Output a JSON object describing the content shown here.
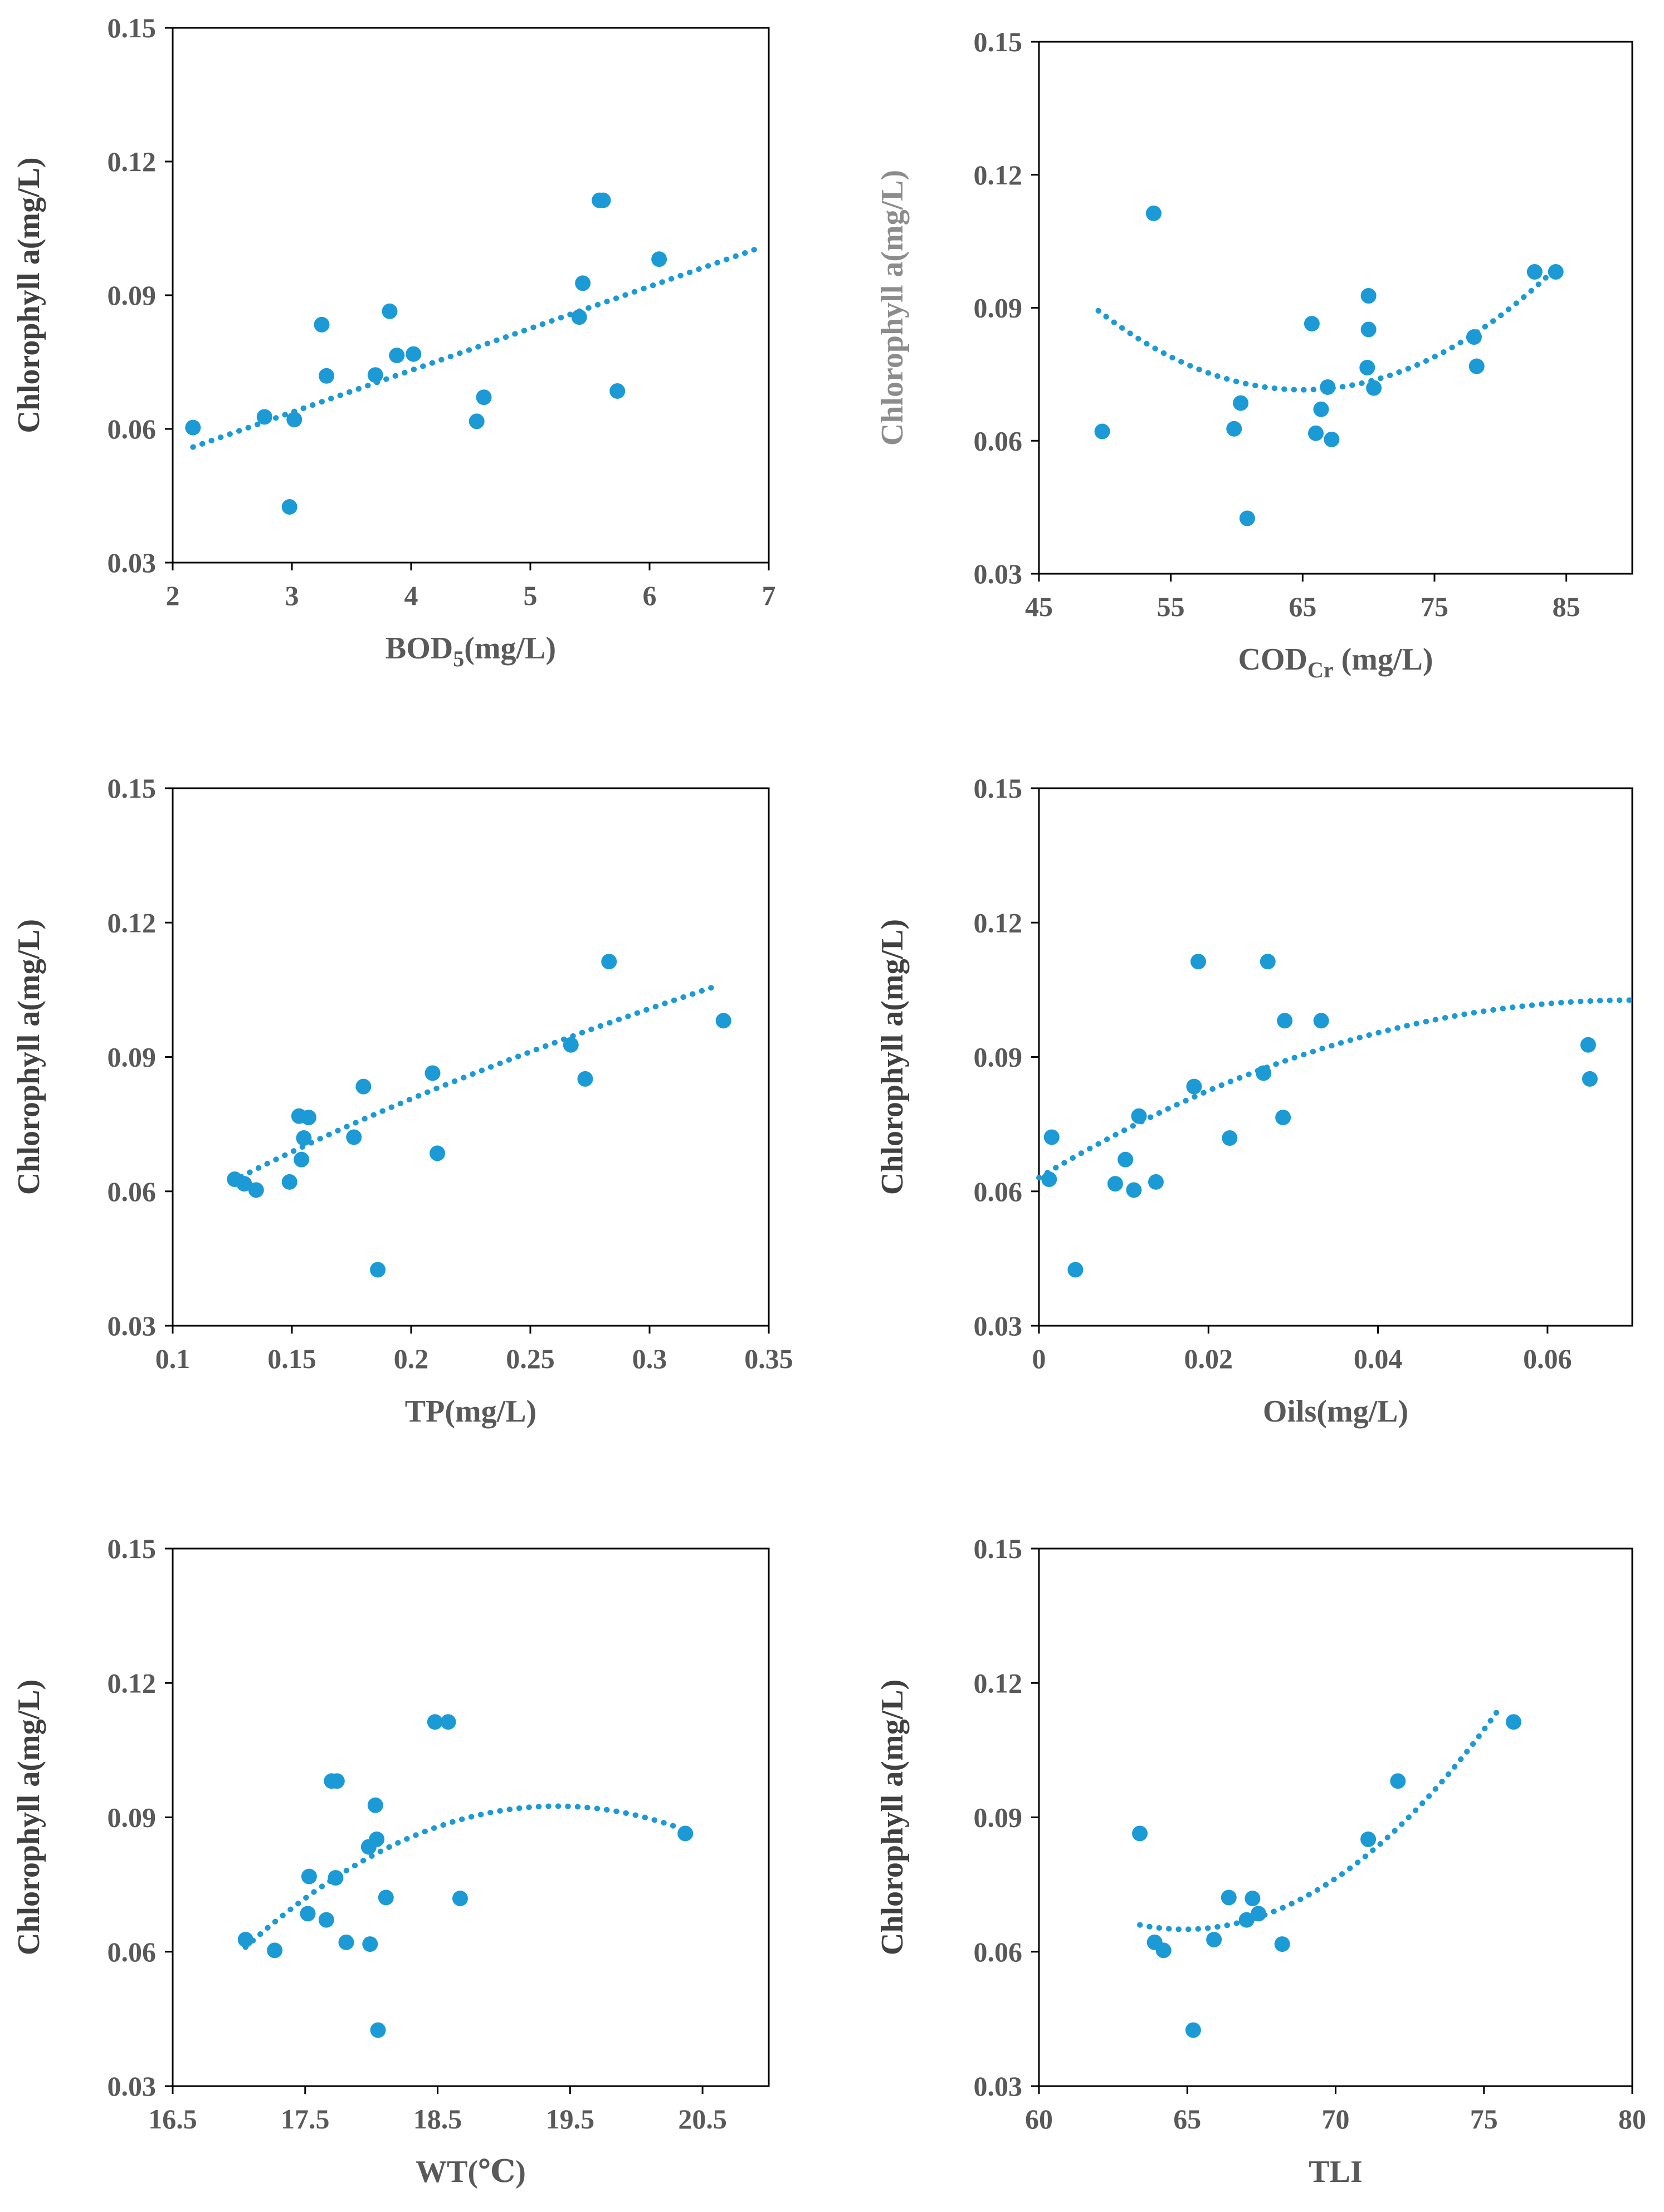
{
  "colors": {
    "marker": "#1b9ad6",
    "axis": "#000000",
    "text": "#595959"
  },
  "chart_data": [
    {
      "id": "bod5",
      "type": "scatter",
      "title": "",
      "xlabel": "BOD",
      "xlabel_sub": "5",
      "xlabel_tail": "(mg/L)",
      "ylabel": "Chlorophyll a(mg/L)",
      "xlim": [
        2,
        7
      ],
      "ylim": [
        0.03,
        0.15
      ],
      "xticks": [
        2,
        3,
        4,
        5,
        6,
        7
      ],
      "xtick_labels": [
        "2",
        "3",
        "4",
        "5",
        "6",
        "7"
      ],
      "yticks": [
        0.03,
        0.06,
        0.09,
        0.12,
        0.15
      ],
      "ytick_labels": [
        "0.03",
        "0.06",
        "0.09",
        "0.12",
        "0.15"
      ],
      "points": [
        [
          2.17,
          0.0603
        ],
        [
          2.77,
          0.0627
        ],
        [
          3.02,
          0.0621
        ],
        [
          2.98,
          0.0425
        ],
        [
          3.25,
          0.0834
        ],
        [
          3.29,
          0.0719
        ],
        [
          3.7,
          0.0721
        ],
        [
          3.82,
          0.0864
        ],
        [
          3.88,
          0.0765
        ],
        [
          4.02,
          0.0768
        ],
        [
          4.55,
          0.0617
        ],
        [
          4.61,
          0.0671
        ],
        [
          5.41,
          0.0851
        ],
        [
          5.44,
          0.0927
        ],
        [
          5.58,
          0.1113
        ],
        [
          5.61,
          0.1113
        ],
        [
          5.73,
          0.0685
        ],
        [
          6.08,
          0.0981
        ]
      ],
      "trend": {
        "kind": "linear",
        "x_range": [
          2.17,
          6.93
        ],
        "coef": [
          0.0355,
          0.00941
        ]
      }
    },
    {
      "id": "codcr",
      "type": "scatter",
      "title": "",
      "xlabel": "COD",
      "xlabel_sub": "Cr",
      "xlabel_tail": " (mg/L)",
      "ylabel": "Chlorophyll a(mg/L)",
      "xlim": [
        45,
        90
      ],
      "ylim": [
        0.03,
        0.15
      ],
      "xticks": [
        45,
        55,
        65,
        75,
        85
      ],
      "xtick_labels": [
        "45",
        "55",
        "65",
        "75",
        "85"
      ],
      "yticks": [
        0.03,
        0.06,
        0.09,
        0.12,
        0.15
      ],
      "ytick_labels": [
        "0.03",
        "0.06",
        "0.09",
        "0.12",
        "0.15"
      ],
      "points": [
        [
          49.8,
          0.0621
        ],
        [
          53.7,
          0.1113
        ],
        [
          59.8,
          0.0627
        ],
        [
          60.3,
          0.0685
        ],
        [
          60.8,
          0.0425
        ],
        [
          65.7,
          0.0864
        ],
        [
          66.0,
          0.0617
        ],
        [
          66.4,
          0.0671
        ],
        [
          66.9,
          0.0721
        ],
        [
          67.2,
          0.0603
        ],
        [
          69.9,
          0.0765
        ],
        [
          70.0,
          0.0927
        ],
        [
          70.0,
          0.0851
        ],
        [
          70.4,
          0.0719
        ],
        [
          78.0,
          0.0834
        ],
        [
          78.2,
          0.0768
        ],
        [
          82.6,
          0.0981
        ],
        [
          84.2,
          0.0981
        ]
      ],
      "trend": {
        "kind": "quadratic",
        "x_range": [
          49.5,
          84.5
        ],
        "vertex": [
          65.0,
          0.0715
        ],
        "a": 7.43e-05
      }
    },
    {
      "id": "tp",
      "type": "scatter",
      "title": "",
      "xlabel": "TP(mg/L)",
      "xlabel_sub": "",
      "xlabel_tail": "",
      "ylabel": "Chlorophyll a(mg/L)",
      "xlim": [
        0.1,
        0.35
      ],
      "ylim": [
        0.03,
        0.15
      ],
      "xticks": [
        0.1,
        0.15,
        0.2,
        0.25,
        0.3,
        0.35
      ],
      "xtick_labels": [
        "0.1",
        "0.15",
        "0.2",
        "0.25",
        "0.3",
        "0.35"
      ],
      "yticks": [
        0.03,
        0.06,
        0.09,
        0.12,
        0.15
      ],
      "ytick_labels": [
        "0.03",
        "0.06",
        "0.09",
        "0.12",
        "0.15"
      ],
      "points": [
        [
          0.126,
          0.0627
        ],
        [
          0.13,
          0.0617
        ],
        [
          0.135,
          0.0603
        ],
        [
          0.149,
          0.0621
        ],
        [
          0.153,
          0.0768
        ],
        [
          0.154,
          0.0671
        ],
        [
          0.155,
          0.0719
        ],
        [
          0.157,
          0.0765
        ],
        [
          0.176,
          0.0721
        ],
        [
          0.18,
          0.0834
        ],
        [
          0.186,
          0.0425
        ],
        [
          0.209,
          0.0864
        ],
        [
          0.211,
          0.0685
        ],
        [
          0.267,
          0.0927
        ],
        [
          0.273,
          0.0851
        ],
        [
          0.283,
          0.1113
        ],
        [
          0.331,
          0.0981
        ]
      ],
      "trend": {
        "kind": "power",
        "x_range": [
          0.125,
          0.327
        ],
        "a": 0.1954,
        "b": 0.55
      }
    },
    {
      "id": "oils",
      "type": "scatter",
      "title": "",
      "xlabel": "Oils(mg/L)",
      "xlabel_sub": "",
      "xlabel_tail": "",
      "ylabel": "Chlorophyll a(mg/L)",
      "xlim": [
        0,
        0.07
      ],
      "ylim": [
        0.03,
        0.15
      ],
      "xticks": [
        0,
        0.02,
        0.04,
        0.06
      ],
      "xtick_labels": [
        "0",
        "0.02",
        "0.04",
        "0.06"
      ],
      "yticks": [
        0.03,
        0.06,
        0.09,
        0.12,
        0.15
      ],
      "ytick_labels": [
        "0.03",
        "0.06",
        "0.09",
        "0.12",
        "0.15"
      ],
      "points": [
        [
          0.0012,
          0.0627
        ],
        [
          0.0015,
          0.0721
        ],
        [
          0.0043,
          0.0425
        ],
        [
          0.009,
          0.0617
        ],
        [
          0.0102,
          0.0671
        ],
        [
          0.0112,
          0.0603
        ],
        [
          0.0118,
          0.0768
        ],
        [
          0.0138,
          0.0621
        ],
        [
          0.0183,
          0.0834
        ],
        [
          0.0188,
          0.1113
        ],
        [
          0.0225,
          0.0719
        ],
        [
          0.0265,
          0.0864
        ],
        [
          0.027,
          0.1113
        ],
        [
          0.0288,
          0.0765
        ],
        [
          0.029,
          0.0981
        ],
        [
          0.0333,
          0.0981
        ],
        [
          0.0648,
          0.0927
        ],
        [
          0.065,
          0.0851
        ]
      ],
      "trend": {
        "kind": "quadratic",
        "x_range": [
          0.0,
          0.07
        ],
        "vertex": [
          0.07,
          0.1027
        ],
        "a": -8.09
      }
    },
    {
      "id": "wt",
      "type": "scatter",
      "title": "",
      "xlabel": "WT(℃)",
      "xlabel_sub": "",
      "xlabel_tail": "",
      "ylabel": "Chlorophyll a(mg/L)",
      "xlim": [
        16.5,
        21.0
      ],
      "ylim": [
        0.03,
        0.15
      ],
      "xticks": [
        16.5,
        17.5,
        18.5,
        19.5,
        20.5
      ],
      "xtick_labels": [
        "16.5",
        "17.5",
        "18.5",
        "19.5",
        "20.5"
      ],
      "yticks": [
        0.03,
        0.06,
        0.09,
        0.12,
        0.15
      ],
      "ytick_labels": [
        "0.03",
        "0.06",
        "0.09",
        "0.12",
        "0.15"
      ],
      "points": [
        [
          17.05,
          0.0627
        ],
        [
          17.27,
          0.0603
        ],
        [
          17.52,
          0.0685
        ],
        [
          17.53,
          0.0768
        ],
        [
          17.66,
          0.0671
        ],
        [
          17.7,
          0.0981
        ],
        [
          17.74,
          0.0981
        ],
        [
          17.73,
          0.0765
        ],
        [
          17.81,
          0.0621
        ],
        [
          17.98,
          0.0834
        ],
        [
          17.99,
          0.0617
        ],
        [
          18.03,
          0.0927
        ],
        [
          18.04,
          0.0851
        ],
        [
          18.05,
          0.0425
        ],
        [
          18.11,
          0.0721
        ],
        [
          18.48,
          0.1113
        ],
        [
          18.58,
          0.1113
        ],
        [
          18.67,
          0.0719
        ],
        [
          20.37,
          0.0864
        ]
      ],
      "trend": {
        "kind": "quadratic",
        "x_range": [
          17.05,
          20.33
        ],
        "vertex": [
          19.4,
          0.0925
        ],
        "a": -0.0057
      }
    },
    {
      "id": "tli",
      "type": "scatter",
      "title": "",
      "xlabel": "TLI",
      "xlabel_sub": "",
      "xlabel_tail": "",
      "ylabel": "Chlorophyll a(mg/L)",
      "xlim": [
        60,
        80
      ],
      "ylim": [
        0.03,
        0.15
      ],
      "xticks": [
        60,
        65,
        70,
        75,
        80
      ],
      "xtick_labels": [
        "60",
        "65",
        "70",
        "75",
        "80"
      ],
      "yticks": [
        0.03,
        0.06,
        0.09,
        0.12,
        0.15
      ],
      "ytick_labels": [
        "0.03",
        "0.06",
        "0.09",
        "0.12",
        "0.15"
      ],
      "points": [
        [
          63.4,
          0.0864
        ],
        [
          63.9,
          0.0621
        ],
        [
          64.2,
          0.0603
        ],
        [
          65.2,
          0.0425
        ],
        [
          65.9,
          0.0627
        ],
        [
          66.4,
          0.0721
        ],
        [
          67.0,
          0.0671
        ],
        [
          67.2,
          0.0719
        ],
        [
          67.4,
          0.0685
        ],
        [
          68.2,
          0.0617
        ],
        [
          71.1,
          0.0851
        ],
        [
          72.1,
          0.0981
        ],
        [
          76.0,
          0.1113
        ]
      ],
      "trend": {
        "kind": "quadratic",
        "x_range": [
          63.4,
          75.6
        ],
        "vertex": [
          64.9,
          0.065
        ],
        "a": 0.000437
      }
    }
  ]
}
